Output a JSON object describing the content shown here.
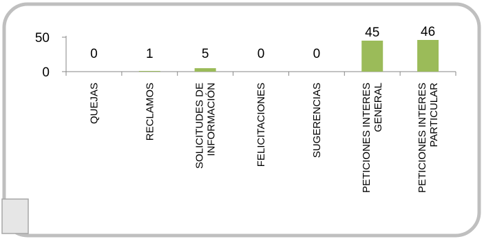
{
  "chart_data": {
    "type": "bar",
    "categories": [
      [
        "QUEJAS"
      ],
      [
        "RECLAMOS"
      ],
      [
        "SOLICITUDES DE",
        "INFORMACIÓN"
      ],
      [
        "FELICITACIONES"
      ],
      [
        "SUGERENCIAS"
      ],
      [
        "PETICIONES INTERES",
        "GENERAL"
      ],
      [
        "PETICIONES INTERES",
        "PARTICULAR"
      ]
    ],
    "values": [
      0,
      1,
      5,
      0,
      0,
      45,
      46
    ],
    "ylim": [
      0,
      50
    ],
    "yticks": [
      "0",
      "50"
    ],
    "bar_color": "#9BBB59",
    "grid": false,
    "legend": "none"
  },
  "frame": {
    "border_color": "#BFBFBF"
  }
}
